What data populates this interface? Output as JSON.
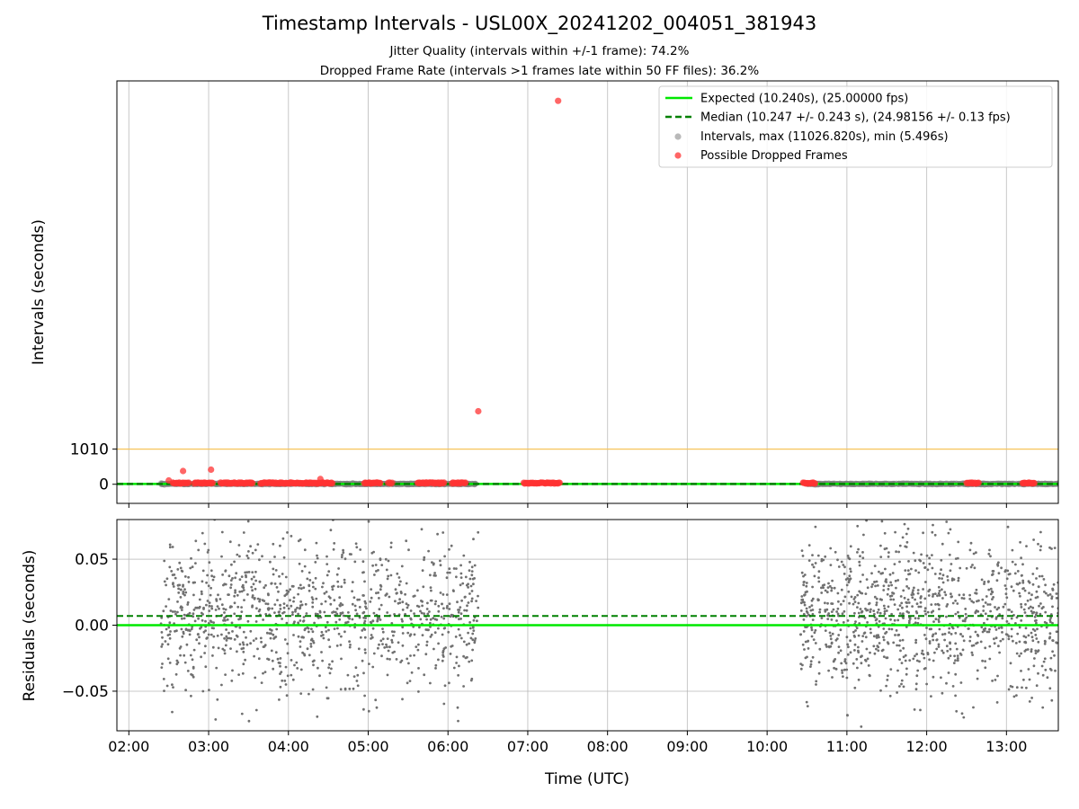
{
  "chart_data": {
    "type": "scatter",
    "title": "Timestamp Intervals - USL00X_20241202_004051_381943",
    "subtitle_lines": [
      "Jitter Quality (intervals within +/-1 frame): 74.2%",
      "Dropped Frame Rate (intervals >1 frames late within 50 FF files): 36.2%"
    ],
    "xlabel": "Time (UTC)",
    "x_tick_labels": [
      "02:00",
      "03:00",
      "04:00",
      "05:00",
      "06:00",
      "07:00",
      "08:00",
      "09:00",
      "10:00",
      "11:00",
      "12:00",
      "13:00"
    ],
    "x_range_hours": [
      1.85,
      13.65
    ],
    "grid": true,
    "top_panel": {
      "ylabel": "Intervals (seconds)",
      "y_tick_labels": [
        "0",
        "1010"
      ],
      "y_ticks": [
        0,
        1010
      ],
      "threshold_line": {
        "value": 1010,
        "color": "#f6c45a"
      },
      "ylim": [
        -550,
        11600
      ],
      "legend_position": "top-right",
      "legend": [
        "Expected (10.240s), (25.00000 fps)",
        "Median (10.247 +/- 0.243 s), (24.98156 +/- 0.13 fps)",
        "Intervals, max (11026.820s), min (5.496s)",
        "Possible Dropped Frames"
      ],
      "expected_interval": 10.24,
      "median_interval": 10.247,
      "max_interval": 11026.82,
      "min_interval": 5.496,
      "interval_segments": [
        {
          "start": 2.4,
          "end": 6.35
        },
        {
          "start": 10.5,
          "end": 13.65
        }
      ],
      "dropped_frame_points": [
        {
          "t": 7.38,
          "v": 11026.82
        },
        {
          "t": 6.38,
          "v": 2100
        },
        {
          "t": 2.68,
          "v": 380
        },
        {
          "t": 3.03,
          "v": 420
        },
        {
          "t": 4.4,
          "v": 150
        },
        {
          "t": 2.5,
          "v": 110
        }
      ],
      "dropped_frame_clusters": [
        {
          "start": 2.55,
          "end": 2.75
        },
        {
          "start": 2.82,
          "end": 3.05
        },
        {
          "start": 3.15,
          "end": 3.55
        },
        {
          "start": 3.65,
          "end": 4.55
        },
        {
          "start": 4.95,
          "end": 5.15
        },
        {
          "start": 5.25,
          "end": 5.3
        },
        {
          "start": 5.62,
          "end": 5.95
        },
        {
          "start": 6.05,
          "end": 6.22
        },
        {
          "start": 6.95,
          "end": 7.4
        },
        {
          "start": 10.45,
          "end": 10.6
        },
        {
          "start": 12.5,
          "end": 12.65
        },
        {
          "start": 13.2,
          "end": 13.35
        }
      ],
      "colors": {
        "expected": "#00e800",
        "median": "#008000",
        "intervals": "#808080",
        "dropped": "#ff3333"
      }
    },
    "bottom_panel": {
      "ylabel": "Residuals (seconds)",
      "y_tick_labels": [
        "0.05",
        "0.00",
        "−0.05"
      ],
      "y_ticks": [
        0.05,
        0.0,
        -0.05
      ],
      "ylim": [
        -0.08,
        0.08
      ],
      "expected_residual": 0.0,
      "median_residual": 0.007,
      "residual_spread": 0.03,
      "residual_segments": [
        {
          "start": 2.4,
          "end": 6.38,
          "count": 1100
        },
        {
          "start": 10.42,
          "end": 13.65,
          "count": 1050
        }
      ]
    }
  }
}
